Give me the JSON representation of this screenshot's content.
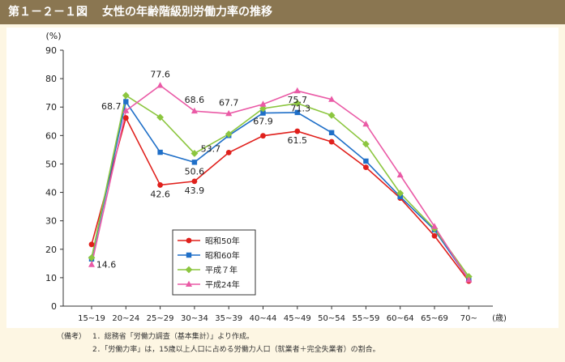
{
  "header": {
    "figure_number": "第１－２－１図",
    "title": "女性の年齢階級別労働力率の推移"
  },
  "notes": {
    "label": "（備考）",
    "items": [
      "1．総務省「労働力調査（基本集計）」より作成。",
      "2．「労働力率」は，15歳以上人口に占める労働力人口（就業者＋完全失業者）の割合。"
    ]
  },
  "chart_data": {
    "type": "line",
    "ylabel": "(%)",
    "xlabel": "(歳)",
    "ylim": [
      0,
      90
    ],
    "yticks": [
      0,
      10,
      20,
      30,
      40,
      50,
      60,
      70,
      80,
      90
    ],
    "grid": false,
    "legend_position": "bottom-left",
    "categories": [
      "15~19",
      "20~24",
      "25~29",
      "30~34",
      "35~39",
      "40~44",
      "45~49",
      "50~54",
      "55~59",
      "60~64",
      "65~69",
      "70~"
    ],
    "series": [
      {
        "name": "昭和50年",
        "color": "#e0201c",
        "marker": "circle",
        "values": [
          21.7,
          66.2,
          42.6,
          43.9,
          54.0,
          59.9,
          61.5,
          57.8,
          48.8,
          38.0,
          24.7,
          8.8
        ]
      },
      {
        "name": "昭和60年",
        "color": "#1f6fc8",
        "marker": "square",
        "values": [
          16.6,
          71.9,
          54.1,
          50.6,
          60.0,
          67.9,
          68.1,
          61.0,
          51.0,
          38.5,
          26.8,
          9.4
        ]
      },
      {
        "name": "平成７年",
        "color": "#8cc63f",
        "marker": "diamond",
        "values": [
          17.0,
          74.1,
          66.4,
          53.7,
          60.5,
          69.5,
          71.3,
          67.1,
          57.0,
          39.7,
          27.2,
          10.4
        ]
      },
      {
        "name": "平成24年",
        "color": "#ea5aa6",
        "marker": "triangle",
        "values": [
          14.6,
          68.7,
          77.6,
          68.6,
          67.7,
          71.0,
          75.7,
          72.7,
          64.0,
          46.1,
          28.0,
          9.2
        ]
      }
    ],
    "annotations": [
      {
        "text": "68.7",
        "series": 3,
        "index": 1
      },
      {
        "text": "77.6",
        "series": 3,
        "index": 2
      },
      {
        "text": "68.6",
        "series": 3,
        "index": 3
      },
      {
        "text": "67.7",
        "series": 3,
        "index": 4
      },
      {
        "text": "75.7",
        "series": 3,
        "index": 6
      },
      {
        "text": "71.3",
        "series": 2,
        "index": 6
      },
      {
        "text": "53.7",
        "series": 2,
        "index": 3
      },
      {
        "text": "67.9",
        "series": 1,
        "index": 5
      },
      {
        "text": "50.6",
        "series": 1,
        "index": 3
      },
      {
        "text": "61.5",
        "series": 0,
        "index": 6
      },
      {
        "text": "42.6",
        "series": 0,
        "index": 2
      },
      {
        "text": "43.9",
        "series": 0,
        "index": 3
      },
      {
        "text": "14.6",
        "series": 3,
        "index": 0
      }
    ]
  }
}
